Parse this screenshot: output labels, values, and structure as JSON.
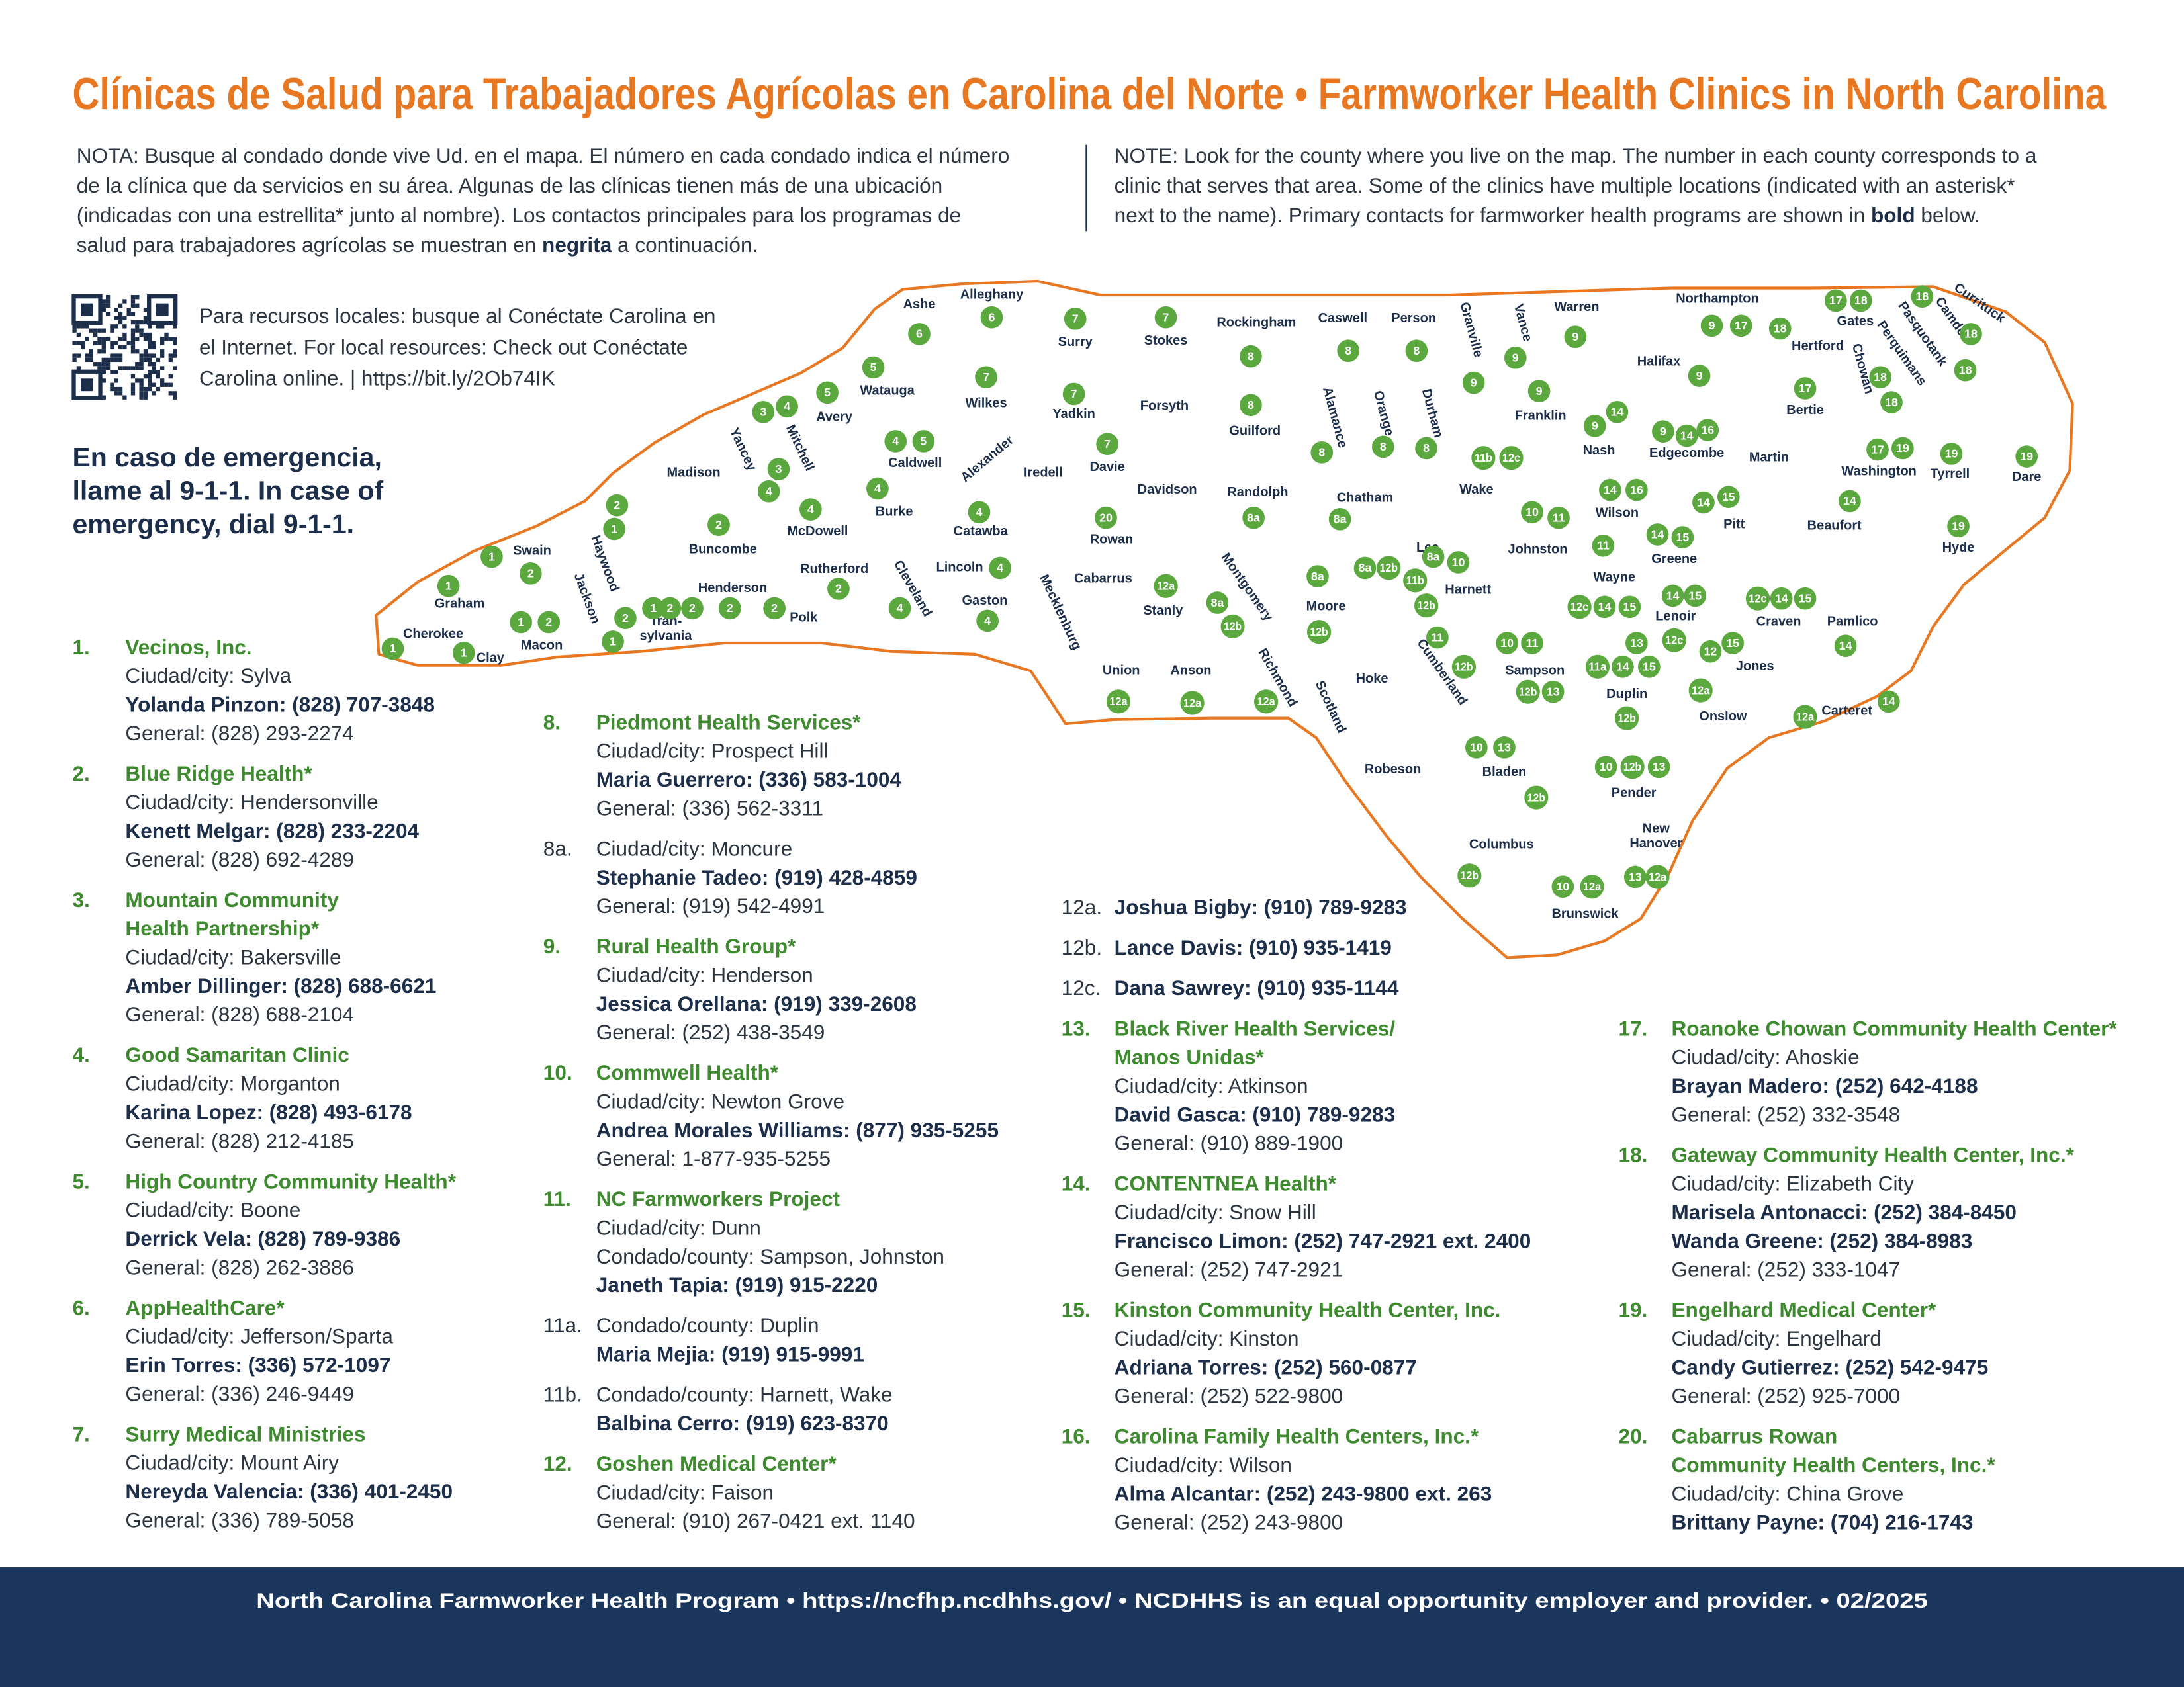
{
  "title": "Clínicas de Salud para Trabajadores Agrícolas en Carolina del Norte  •  Farmworker Health Clinics in North Carolina",
  "note_es": [
    "NOTA: Busque al condado donde vive Ud. en el mapa. El número en cada condado indica el número",
    "de la clínica que da servicios en su área. Algunas de las clínicas tienen más de una ubicación",
    "(indicadas con una estrellita* junto al nombre). Los contactos principales para los programas de",
    [
      "salud para trabajadores agrícolas se muestran en ",
      "negrita",
      " a continuación."
    ]
  ],
  "note_en": [
    "NOTE: Look for the county where you live on the map. The number in each county corresponds to a",
    "clinic that serves that area. Some of the clinics have multiple locations (indicated with an asterisk*",
    [
      "next to the name). Primary contacts for farmworker health programs are shown in ",
      "bold",
      " below."
    ]
  ],
  "resources": [
    "Para recursos locales: busque al Conéctate Carolina en",
    "el Internet. For local resources: Check out Conéctate",
    "Carolina online.  |  https://bit.ly/2Ob74IK"
  ],
  "emergency": [
    "En caso de emergencia,",
    "llame al 9-1-1. In case of",
    "emergency, dial 9-1-1."
  ],
  "counties": [
    {
      "name": "Cherokee",
      "clinics": [
        "1"
      ]
    },
    {
      "name": "Graham",
      "clinics": [
        "1"
      ]
    },
    {
      "name": "Clay",
      "clinics": [
        "1"
      ]
    },
    {
      "name": "Swain",
      "clinics": [
        "1",
        "2"
      ]
    },
    {
      "name": "Macon",
      "clinics": [
        "1",
        "2"
      ]
    },
    {
      "name": "Jackson",
      "clinics": [
        "2",
        "1"
      ]
    },
    {
      "name": [
        "Tran-",
        "sylvania"
      ],
      "clinics": [
        "1",
        "2"
      ]
    },
    {
      "name": "Henderson",
      "clinics": [
        "2",
        "2"
      ]
    },
    {
      "name": "Polk",
      "clinics": [
        "2"
      ]
    },
    {
      "name": "Haywood",
      "clinics": [
        "2",
        "1"
      ]
    },
    {
      "name": "Madison",
      "clinics": []
    },
    {
      "name": "Yancey",
      "clinics": [
        "3",
        "4"
      ]
    },
    {
      "name": "Mitchell",
      "clinics": [
        "3",
        "4"
      ]
    },
    {
      "name": "Buncombe",
      "clinics": [
        "2"
      ]
    },
    {
      "name": "Avery",
      "clinics": [
        "5"
      ]
    },
    {
      "name": "Watauga",
      "clinics": [
        "5"
      ]
    },
    {
      "name": "Ashe",
      "clinics": [
        "6"
      ]
    },
    {
      "name": "Alleghany",
      "clinics": [
        "6"
      ]
    },
    {
      "name": "Wilkes",
      "clinics": [
        "7"
      ]
    },
    {
      "name": "Surry",
      "clinics": [
        "7"
      ]
    },
    {
      "name": "Yadkin",
      "clinics": [
        "7"
      ]
    },
    {
      "name": "Stokes",
      "clinics": [
        "7"
      ]
    },
    {
      "name": "Forsyth",
      "clinics": []
    },
    {
      "name": "Rockingham",
      "clinics": [
        "8"
      ]
    },
    {
      "name": "Caswell",
      "clinics": [
        "8"
      ]
    },
    {
      "name": "Person",
      "clinics": [
        "8"
      ]
    },
    {
      "name": "Guilford",
      "clinics": [
        "8"
      ]
    },
    {
      "name": "Alamance",
      "clinics": [
        "8"
      ]
    },
    {
      "name": "Orange",
      "clinics": [
        "8"
      ]
    },
    {
      "name": "Durham",
      "clinics": [
        "8"
      ]
    },
    {
      "name": "Granville",
      "clinics": [
        "9"
      ]
    },
    {
      "name": "Vance",
      "clinics": [
        "9"
      ]
    },
    {
      "name": "Warren",
      "clinics": [
        "9"
      ]
    },
    {
      "name": "Franklin",
      "clinics": [
        "9"
      ]
    },
    {
      "name": "Halifax",
      "clinics": [
        "9"
      ]
    },
    {
      "name": "Northampton",
      "clinics": [
        "9",
        "17"
      ]
    },
    {
      "name": "Hertford",
      "clinics": [
        "18"
      ]
    },
    {
      "name": "Gates",
      "clinics": [
        "17",
        "18"
      ]
    },
    {
      "name": "Bertie",
      "clinics": [
        "17"
      ]
    },
    {
      "name": "Chowan",
      "clinics": [
        "18"
      ]
    },
    {
      "name": "Perquimans",
      "clinics": [
        "18"
      ]
    },
    {
      "name": "Pasquotank",
      "clinics": [
        "18"
      ]
    },
    {
      "name": "Camden",
      "clinics": [
        "18"
      ]
    },
    {
      "name": "Currituck",
      "clinics": [
        "18"
      ]
    },
    {
      "name": "Nash",
      "clinics": [
        "9",
        "14"
      ]
    },
    {
      "name": "Edgecombe",
      "clinics": [
        "9",
        "14",
        "16"
      ]
    },
    {
      "name": "Martin",
      "clinics": []
    },
    {
      "name": "Washington",
      "clinics": [
        "17",
        "19"
      ]
    },
    {
      "name": "Tyrrell",
      "clinics": [
        "19"
      ]
    },
    {
      "name": "Dare",
      "clinics": [
        "19"
      ]
    },
    {
      "name": "Caldwell",
      "clinics": [
        "4",
        "5"
      ]
    },
    {
      "name": "Alexander",
      "clinics": []
    },
    {
      "name": "Iredell",
      "clinics": []
    },
    {
      "name": "Davie",
      "clinics": [
        "7"
      ]
    },
    {
      "name": "Davidson",
      "clinics": []
    },
    {
      "name": "Randolph",
      "clinics": [
        "8a"
      ]
    },
    {
      "name": "Chatham",
      "clinics": [
        "8a"
      ]
    },
    {
      "name": "Wake",
      "clinics": [
        "11b",
        "12c"
      ]
    },
    {
      "name": "Burke",
      "clinics": [
        "4"
      ]
    },
    {
      "name": "McDowell",
      "clinics": [
        "4"
      ]
    },
    {
      "name": "Catawba",
      "clinics": [
        "4"
      ]
    },
    {
      "name": "Rowan",
      "clinics": [
        "20"
      ]
    },
    {
      "name": "Wilson",
      "clinics": [
        "14",
        "16"
      ]
    },
    {
      "name": "Pitt",
      "clinics": [
        "14",
        "15"
      ]
    },
    {
      "name": "Beaufort",
      "clinics": [
        "14"
      ]
    },
    {
      "name": "Hyde",
      "clinics": [
        "19"
      ]
    },
    {
      "name": "Johnston",
      "clinics": [
        "10",
        "11"
      ]
    },
    {
      "name": "Lee",
      "clinics": [
        "8a",
        "12b"
      ]
    },
    {
      "name": "Harnett",
      "clinics": [
        "8a",
        "10",
        "11b",
        "12b"
      ]
    },
    {
      "name": "Greene",
      "clinics": [
        "14",
        "15"
      ]
    },
    {
      "name": "Wayne",
      "clinics": [
        "11",
        "12c",
        "14",
        "15"
      ]
    },
    {
      "name": "Lenoir",
      "clinics": [
        "14",
        "15"
      ]
    },
    {
      "name": "Rutherford",
      "clinics": [
        "2"
      ]
    },
    {
      "name": "Cleveland",
      "clinics": [
        "4"
      ]
    },
    {
      "name": "Lincoln",
      "clinics": [
        "4"
      ]
    },
    {
      "name": "Gaston",
      "clinics": [
        "4"
      ]
    },
    {
      "name": "Mecklenburg",
      "clinics": []
    },
    {
      "name": "Cabarrus",
      "clinics": []
    },
    {
      "name": "Stanly",
      "clinics": [
        "12a"
      ]
    },
    {
      "name": "Montgomery",
      "clinics": [
        "8a",
        "12b"
      ]
    },
    {
      "name": "Moore",
      "clinics": [
        "8a",
        "12b"
      ]
    },
    {
      "name": "Union",
      "clinics": [
        "12a"
      ]
    },
    {
      "name": "Anson",
      "clinics": [
        "12a"
      ]
    },
    {
      "name": "Richmond",
      "clinics": [
        "12a"
      ]
    },
    {
      "name": "Scotland",
      "clinics": []
    },
    {
      "name": "Hoke",
      "clinics": []
    },
    {
      "name": "Cumberland",
      "clinics": [
        "11",
        "12b"
      ]
    },
    {
      "name": "Sampson",
      "clinics": [
        "10",
        "11",
        "12b",
        "13"
      ]
    },
    {
      "name": "Duplin",
      "clinics": [
        "11a",
        "14",
        "15",
        "13",
        "12c",
        "12b"
      ]
    },
    {
      "name": "Craven",
      "clinics": [
        "12c",
        "14",
        "15"
      ]
    },
    {
      "name": "Pamlico",
      "clinics": [
        "14"
      ]
    },
    {
      "name": "Jones",
      "clinics": [
        "12",
        "15"
      ]
    },
    {
      "name": "Onslow",
      "clinics": [
        "12a"
      ]
    },
    {
      "name": "Carteret",
      "clinics": [
        "12a",
        "14"
      ]
    },
    {
      "name": "Robeson",
      "clinics": []
    },
    {
      "name": "Bladen",
      "clinics": [
        "10",
        "13",
        "12b"
      ]
    },
    {
      "name": "Pender",
      "clinics": [
        "10",
        "12b",
        "13"
      ]
    },
    {
      "name": "Columbus",
      "clinics": [
        "12b"
      ]
    },
    {
      "name": [
        "New",
        "Hanover"
      ],
      "clinics": [
        "13",
        "12a"
      ]
    },
    {
      "name": "Brunswick",
      "clinics": [
        "10",
        "12a"
      ]
    }
  ],
  "clinics": [
    {
      "number": "1.",
      "name": [
        "Vecinos, Inc."
      ],
      "lines": [
        {
          "text": "Ciudad/city: Sylva"
        },
        {
          "text": "Yolanda Pinzon: (828) 707-3848",
          "bold": true
        },
        {
          "text": "General: (828) 293-2274"
        }
      ]
    },
    {
      "number": "2.",
      "name": [
        "Blue Ridge Health*"
      ],
      "lines": [
        {
          "text": "Ciudad/city: Hendersonville"
        },
        {
          "text": "Kenett Melgar: (828) 233-2204",
          "bold": true
        },
        {
          "text": "General: (828) 692-4289"
        }
      ]
    },
    {
      "number": "3.",
      "name": [
        "Mountain Community",
        "Health Partnership*"
      ],
      "lines": [
        {
          "text": "Ciudad/city: Bakersville"
        },
        {
          "text": "Amber Dillinger: (828) 688-6621",
          "bold": true
        },
        {
          "text": "General: (828) 688-2104"
        }
      ]
    },
    {
      "number": "4.",
      "name": [
        "Good Samaritan Clinic"
      ],
      "lines": [
        {
          "text": "Ciudad/city: Morganton"
        },
        {
          "text": "Karina Lopez: (828) 493-6178",
          "bold": true
        },
        {
          "text": "General: (828) 212-4185"
        }
      ]
    },
    {
      "number": "5.",
      "name": [
        "High Country Community Health*"
      ],
      "lines": [
        {
          "text": "Ciudad/city: Boone"
        },
        {
          "text": "Derrick Vela: (828) 789-9386",
          "bold": true
        },
        {
          "text": "General: (828) 262-3886"
        }
      ]
    },
    {
      "number": "6.",
      "name": [
        "AppHealthCare*"
      ],
      "lines": [
        {
          "text": "Ciudad/city: Jefferson/Sparta"
        },
        {
          "text": "Erin Torres: (336) 572-1097",
          "bold": true
        },
        {
          "text": "General: (336) 246-9449"
        }
      ]
    },
    {
      "number": "7.",
      "name": [
        "Surry Medical Ministries"
      ],
      "lines": [
        {
          "text": "Ciudad/city: Mount Airy"
        },
        {
          "text": "Nereyda Valencia: (336) 401-2450",
          "bold": true
        },
        {
          "text": "General: (336) 789-5058"
        }
      ]
    },
    {
      "number": "8.",
      "name": [
        "Piedmont Health Services*"
      ],
      "lines": [
        {
          "text": "Ciudad/city: Prospect Hill"
        },
        {
          "text": "Maria Guerrero: (336) 583-1004",
          "bold": true
        },
        {
          "text": "General: (336) 562-3311"
        }
      ]
    },
    {
      "number": "8a.",
      "lines": [
        {
          "text": "Ciudad/city: Moncure"
        },
        {
          "text": "Stephanie Tadeo: (919) 428-4859",
          "bold": true
        },
        {
          "text": "General: (919) 542-4991"
        }
      ]
    },
    {
      "number": "9.",
      "name": [
        "Rural Health Group*"
      ],
      "lines": [
        {
          "text": "Ciudad/city: Henderson"
        },
        {
          "text": "Jessica Orellana: (919) 339-2608",
          "bold": true
        },
        {
          "text": "General: (252) 438-3549"
        }
      ]
    },
    {
      "number": "10.",
      "name": [
        "Commwell Health*"
      ],
      "lines": [
        {
          "text": "Ciudad/city: Newton Grove"
        },
        {
          "text": "Andrea Morales Williams: (877) 935-5255",
          "bold": true
        },
        {
          "text": "General: 1-877-935-5255"
        }
      ]
    },
    {
      "number": "11.",
      "name": [
        "NC Farmworkers Project"
      ],
      "lines": [
        {
          "text": "Ciudad/city: Dunn"
        },
        {
          "text": "Condado/county: Sampson, Johnston"
        },
        {
          "text": "Janeth Tapia: (919) 915-2220",
          "bold": true
        }
      ]
    },
    {
      "number": "11a.",
      "lines": [
        {
          "text": "Condado/county: Duplin"
        },
        {
          "text": "Maria Mejia: (919) 915-9991",
          "bold": true
        }
      ]
    },
    {
      "number": "11b.",
      "lines": [
        {
          "text": "Condado/county: Harnett, Wake"
        },
        {
          "text": "Balbina Cerro: (919) 623-8370",
          "bold": true
        }
      ]
    },
    {
      "number": "12.",
      "name": [
        "Goshen Medical Center*"
      ],
      "lines": [
        {
          "text": "Ciudad/city: Faison"
        },
        {
          "text": "General: (910) 267-0421 ext. 1140"
        }
      ]
    },
    {
      "number": "12a.",
      "lines": [
        {
          "text": "Joshua Bigby: (910) 789-9283",
          "bold": true
        }
      ]
    },
    {
      "number": "12b.",
      "lines": [
        {
          "text": "Lance Davis: (910) 935-1419",
          "bold": true
        }
      ]
    },
    {
      "number": "12c.",
      "lines": [
        {
          "text": "Dana Sawrey: (910) 935-1144",
          "bold": true
        }
      ]
    },
    {
      "number": "13.",
      "name": [
        "Black River Health Services/",
        "Manos Unidas*"
      ],
      "lines": [
        {
          "text": "Ciudad/city: Atkinson"
        },
        {
          "text": "David Gasca: (910) 789-9283",
          "bold": true
        },
        {
          "text": "General: (910) 889-1900"
        }
      ]
    },
    {
      "number": "14.",
      "name": [
        "CONTENTNEA Health*"
      ],
      "lines": [
        {
          "text": "Ciudad/city: Snow Hill"
        },
        {
          "text": "Francisco Limon: (252) 747-2921 ext. 2400",
          "bold": true
        },
        {
          "text": "General: (252) 747-2921"
        }
      ]
    },
    {
      "number": "15.",
      "name": [
        "Kinston Community Health Center, Inc."
      ],
      "lines": [
        {
          "text": "Ciudad/city: Kinston"
        },
        {
          "text": "Adriana Torres: (252) 560-0877",
          "bold": true
        },
        {
          "text": "General: (252) 522-9800"
        }
      ]
    },
    {
      "number": "16.",
      "name": [
        "Carolina Family Health Centers, Inc.*"
      ],
      "lines": [
        {
          "text": "Ciudad/city: Wilson"
        },
        {
          "text": "Alma Alcantar: (252) 243-9800 ext. 263",
          "bold": true
        },
        {
          "text": "General: (252) 243-9800"
        }
      ]
    },
    {
      "number": "17.",
      "name": [
        "Roanoke Chowan Community Health Center*"
      ],
      "lines": [
        {
          "text": "Ciudad/city: Ahoskie"
        },
        {
          "text": "Brayan Madero: (252) 642-4188",
          "bold": true
        },
        {
          "text": "General: (252) 332-3548"
        }
      ]
    },
    {
      "number": "18.",
      "name": [
        "Gateway Community Health Center, Inc.*"
      ],
      "lines": [
        {
          "text": "Ciudad/city: Elizabeth City"
        },
        {
          "text": "Marisela Antonacci: (252) 384-8450",
          "bold": true
        },
        {
          "text": "Wanda Greene: (252) 384-8983",
          "bold": true
        },
        {
          "text": "General: (252) 333-1047"
        }
      ]
    },
    {
      "number": "19.",
      "name": [
        "Engelhard Medical Center*"
      ],
      "lines": [
        {
          "text": "Ciudad/city: Engelhard"
        },
        {
          "text": "Candy Gutierrez: (252) 542-9475",
          "bold": true
        },
        {
          "text": "General: (252) 925-7000"
        }
      ]
    },
    {
      "number": "20.",
      "name": [
        "Cabarrus Rowan",
        "Community Health Centers, Inc.*"
      ],
      "lines": [
        {
          "text": "Ciudad/city: China Grove"
        },
        {
          "text": "Brittany Payne: (704) 216-1743",
          "bold": true
        }
      ]
    }
  ],
  "footer": "North Carolina Farmworker Health Program  •  https://ncfhp.ncdhhs.gov/  •  NCDHHS is an equal opportunity employer and provider.  •  02/2025"
}
